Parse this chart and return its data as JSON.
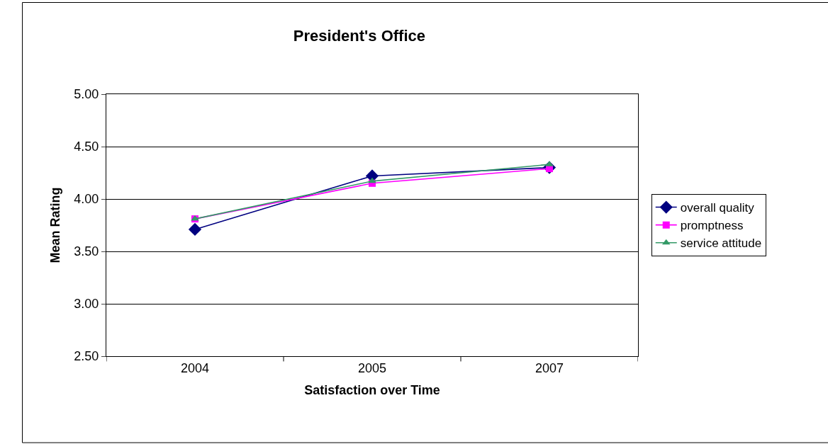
{
  "chart_data": {
    "type": "line",
    "title": "President's Office",
    "xlabel": "Satisfaction over Time",
    "ylabel": "Mean Rating",
    "categories": [
      "2004",
      "2005",
      "2007"
    ],
    "series": [
      {
        "name": "overall quality",
        "color": "#000080",
        "marker": "diamond",
        "values": [
          3.71,
          4.22,
          4.3
        ]
      },
      {
        "name": "promptness",
        "color": "#ff00ff",
        "marker": "square",
        "values": [
          3.81,
          4.15,
          4.29
        ]
      },
      {
        "name": "service attitude",
        "color": "#339966",
        "marker": "triangle",
        "values": [
          3.81,
          4.17,
          4.33
        ]
      }
    ],
    "ylim": [
      2.5,
      5.0
    ],
    "yticks": [
      {
        "value": 2.5,
        "label": "2.50"
      },
      {
        "value": 3.0,
        "label": "3.00"
      },
      {
        "value": 3.5,
        "label": "3.50"
      },
      {
        "value": 4.0,
        "label": "4.00"
      },
      {
        "value": 4.5,
        "label": "4.50"
      },
      {
        "value": 5.0,
        "label": "5.00"
      }
    ],
    "grid": "y",
    "legend": "right"
  }
}
